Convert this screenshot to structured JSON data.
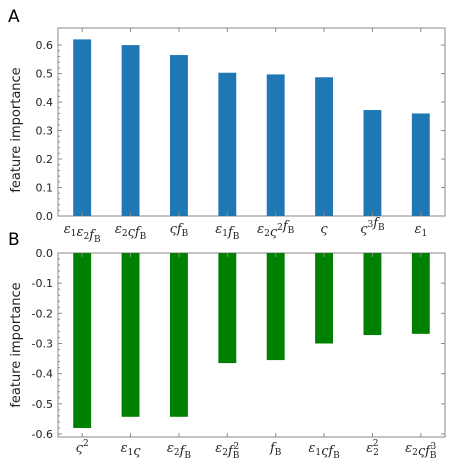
{
  "chart_data": [
    {
      "panel": "A",
      "type": "bar",
      "ylabel": "feature importance",
      "ylim": [
        0,
        0.66
      ],
      "yticks": [
        "0.0",
        "0.1",
        "0.2",
        "0.3",
        "0.4",
        "0.5",
        "0.6"
      ],
      "color": "#1f77b4",
      "categories": [
        [
          {
            "t": "ε"
          },
          {
            "t": "1",
            "sub": true
          },
          {
            "t": "ε"
          },
          {
            "t": "2",
            "sub": true
          },
          {
            "t": "f"
          },
          {
            "t": "B",
            "sub": true
          }
        ],
        [
          {
            "t": "ε"
          },
          {
            "t": "2",
            "sub": true
          },
          {
            "t": "ςf"
          },
          {
            "t": "B",
            "sub": true
          }
        ],
        [
          {
            "t": "ςf"
          },
          {
            "t": "B",
            "sub": true
          }
        ],
        [
          {
            "t": "ε"
          },
          {
            "t": "1",
            "sub": true
          },
          {
            "t": "f"
          },
          {
            "t": "B",
            "sub": true
          }
        ],
        [
          {
            "t": "ε"
          },
          {
            "t": "2",
            "sub": true
          },
          {
            "t": "ς"
          },
          {
            "t": "2",
            "sup": true
          },
          {
            "t": "f"
          },
          {
            "t": "B",
            "sub": true
          }
        ],
        [
          {
            "t": "ς"
          }
        ],
        [
          {
            "t": "ς"
          },
          {
            "t": "3",
            "sup": true
          },
          {
            "t": "f"
          },
          {
            "t": "B",
            "sub": true
          }
        ],
        [
          {
            "t": "ε"
          },
          {
            "t": "1",
            "sub": true
          }
        ]
      ],
      "values": [
        0.62,
        0.6,
        0.565,
        0.503,
        0.497,
        0.487,
        0.372,
        0.36
      ]
    },
    {
      "panel": "B",
      "type": "bar",
      "ylabel": "feature importance",
      "ylim": [
        -0.61,
        0
      ],
      "yticks": [
        "0.0",
        "-0.1",
        "-0.2",
        "-0.3",
        "-0.4",
        "-0.5",
        "-0.6"
      ],
      "color": "#008000",
      "categories": [
        [
          {
            "t": "ς"
          },
          {
            "t": "2",
            "sup": true
          }
        ],
        [
          {
            "t": "ε"
          },
          {
            "t": "1",
            "sub": true
          },
          {
            "t": "ς"
          }
        ],
        [
          {
            "t": "ε"
          },
          {
            "t": "2",
            "sub": true
          },
          {
            "t": "f"
          },
          {
            "t": "B",
            "sub": true
          }
        ],
        [
          {
            "t": "ε"
          },
          {
            "t": "2",
            "sub": true
          },
          {
            "t": "f"
          },
          {
            "t": "B",
            "sub": true,
            "sup2": "2"
          }
        ],
        [
          {
            "t": "f"
          },
          {
            "t": "B",
            "sub": true
          }
        ],
        [
          {
            "t": "ε"
          },
          {
            "t": "1",
            "sub": true
          },
          {
            "t": "ςf"
          },
          {
            "t": "B",
            "sub": true
          }
        ],
        [
          {
            "t": "ε"
          },
          {
            "t": "2",
            "sub": true,
            "sup2": "2"
          }
        ],
        [
          {
            "t": "ε"
          },
          {
            "t": "2",
            "sub": true
          },
          {
            "t": "ςf"
          },
          {
            "t": "B",
            "sub": true,
            "sup2": "3"
          }
        ]
      ],
      "values": [
        -0.58,
        -0.543,
        -0.543,
        -0.365,
        -0.355,
        -0.3,
        -0.272,
        -0.268
      ]
    }
  ]
}
